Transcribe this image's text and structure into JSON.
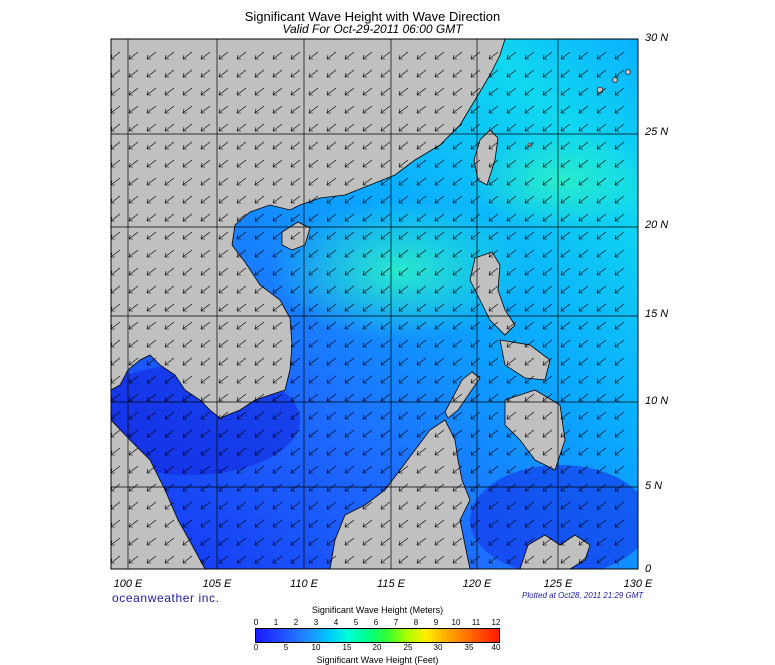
{
  "title": "Significant Wave Height with Wave Direction",
  "subtitle": "Valid For Oct-29-2011 06:00 GMT",
  "latitude_labels": [
    "30 N",
    "25 N",
    "20 N",
    "15 N",
    "10 N",
    "5 N",
    "0"
  ],
  "longitude_labels": [
    "100 E",
    "105 E",
    "110 E",
    "115 E",
    "120 E",
    "125 E",
    "130 E"
  ],
  "brand": "oceanweather inc.",
  "plotted_note": "Plotted at Oct28, 2011 21:29 GMT",
  "legend": {
    "title_meters": "Significant Wave Height (Meters)",
    "title_feet": "Significant Wave Height (Feet)",
    "meters_ticks": [
      "0",
      "1",
      "2",
      "3",
      "4",
      "5",
      "6",
      "7",
      "8",
      "9",
      "10",
      "11",
      "12"
    ],
    "feet_ticks": [
      "0",
      "5",
      "10",
      "15",
      "20",
      "25",
      "30",
      "35",
      "40"
    ]
  },
  "colors": {
    "land": "#c0c0c0",
    "sea_low": "#1a3cff",
    "sea_mid": "#0096ff",
    "sea_high": "#00e6e6",
    "arrows": "#000000"
  },
  "wave_direction": "toward southwest"
}
